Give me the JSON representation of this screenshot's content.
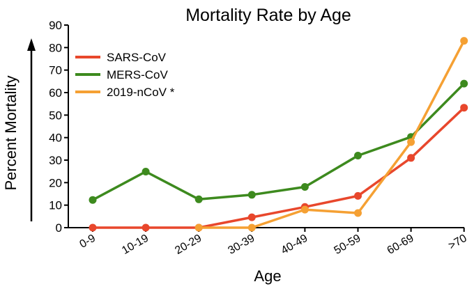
{
  "chart_data": {
    "type": "line",
    "title": "Mortality Rate by Age",
    "xlabel": "Age",
    "ylabel": "Percent Mortality",
    "categories": [
      "0-9",
      "10-19",
      "20-29",
      "30-39",
      "40-49",
      "50-59",
      "60-69",
      ">70"
    ],
    "yticks": [
      0,
      10,
      20,
      30,
      40,
      50,
      60,
      70,
      80,
      90
    ],
    "ylim": [
      0,
      90
    ],
    "grid": false,
    "legend_position": "top-left",
    "series": [
      {
        "name": "SARS-CoV",
        "color": "#e8472c",
        "values": [
          0,
          0,
          0,
          4.6,
          9.2,
          14.1,
          31.0,
          53.3
        ]
      },
      {
        "name": "MERS-CoV",
        "color": "#3d8a1e",
        "values": [
          12.3,
          24.9,
          12.6,
          14.6,
          18.1,
          32.0,
          40.3,
          64.0
        ]
      },
      {
        "name": "2019-nCoV *",
        "color": "#f5a033",
        "values": [
          null,
          null,
          0,
          0,
          8.0,
          6.5,
          38.0,
          83.0
        ]
      }
    ]
  }
}
